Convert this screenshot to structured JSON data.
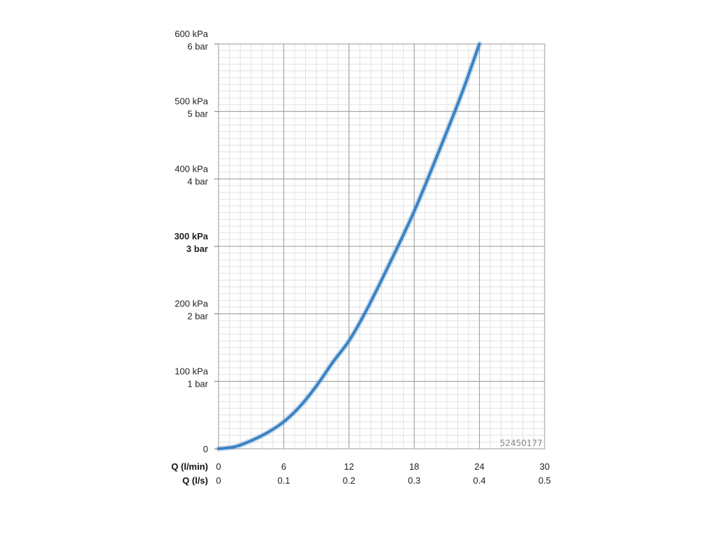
{
  "chart_data": {
    "type": "line",
    "y_axis": {
      "range_kpa": [
        0,
        600
      ],
      "major_ticks": [
        {
          "value": 0,
          "kpa_label": "0",
          "bar_label": "",
          "bold": false
        },
        {
          "value": 100,
          "kpa_label": "100 kPa",
          "bar_label": "1 bar",
          "bold": false
        },
        {
          "value": 200,
          "kpa_label": "200 kPa",
          "bar_label": "2 bar",
          "bold": false
        },
        {
          "value": 300,
          "kpa_label": "300 kPa",
          "bar_label": "3 bar",
          "bold": true
        },
        {
          "value": 400,
          "kpa_label": "400 kPa",
          "bar_label": "4 bar",
          "bold": false
        },
        {
          "value": 500,
          "kpa_label": "500 kPa",
          "bar_label": "5 bar",
          "bold": false
        },
        {
          "value": 600,
          "kpa_label": "600 kPa",
          "bar_label": "6 bar",
          "bold": false
        }
      ],
      "minor_per_major": 10
    },
    "x_axis": {
      "range_lmin": [
        0,
        30
      ],
      "row1_title": "Q (l/min)",
      "row2_title": "Q (l/s)",
      "major_ticks": [
        {
          "value": 0,
          "lmin_label": "0",
          "ls_label": "0"
        },
        {
          "value": 6,
          "lmin_label": "6",
          "ls_label": "0.1"
        },
        {
          "value": 12,
          "lmin_label": "12",
          "ls_label": "0.2"
        },
        {
          "value": 18,
          "lmin_label": "18",
          "ls_label": "0.3"
        },
        {
          "value": 24,
          "lmin_label": "24",
          "ls_label": "0.4"
        },
        {
          "value": 30,
          "lmin_label": "30",
          "ls_label": "0.5"
        }
      ],
      "minor_per_major": 6
    },
    "grid": true,
    "series": [
      {
        "color": "#3a82c4",
        "points": [
          [
            0,
            0
          ],
          [
            1.5,
            3
          ],
          [
            3,
            12
          ],
          [
            4.5,
            24
          ],
          [
            6,
            40
          ],
          [
            7.5,
            63
          ],
          [
            9,
            93
          ],
          [
            10.5,
            128
          ],
          [
            12,
            160
          ],
          [
            13.5,
            202
          ],
          [
            15,
            250
          ],
          [
            16.5,
            300
          ],
          [
            18,
            352
          ],
          [
            19.5,
            410
          ],
          [
            21,
            470
          ],
          [
            22.5,
            532
          ],
          [
            24,
            600
          ]
        ]
      }
    ],
    "watermark_code": "52450177"
  }
}
